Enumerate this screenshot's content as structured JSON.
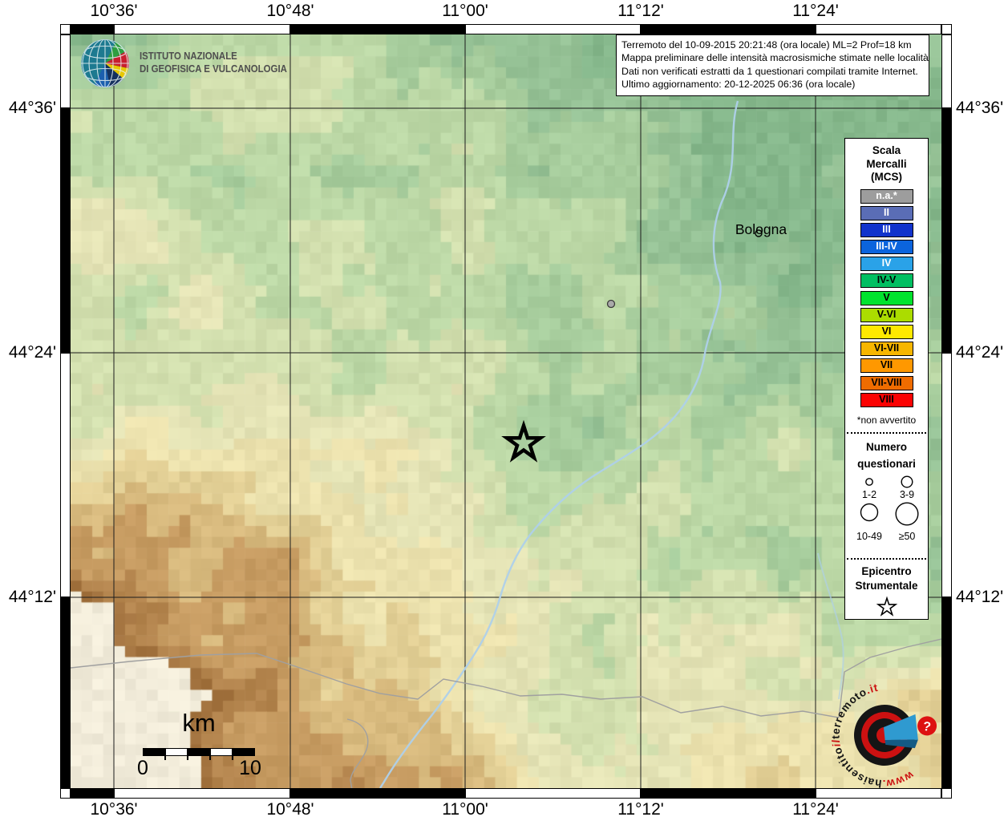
{
  "axes": {
    "lon_labels": [
      "10°36'",
      "10°48'",
      "11°00'",
      "11°12'",
      "11°24'"
    ],
    "lat_labels": [
      "44°36'",
      "44°24'",
      "44°12'"
    ]
  },
  "ingv": {
    "line1": "ISTITUTO NAZIONALE",
    "line2": "DI GEOFISICA E VULCANOLOGIA"
  },
  "info_box": {
    "lines": [
      "Terremoto del 10-09-2015 20:21:48 (ora locale) ML=2 Prof=18 km",
      "Mappa preliminare delle intensità macrosismiche stimate nelle località",
      "Dati non verificati estratti da 1 questionari compilati tramite Internet.",
      "Ultimo aggiornamento: 20-12-2025 06:36 (ora locale)"
    ]
  },
  "legend": {
    "title_lines": [
      "Scala",
      "Mercalli",
      "(MCS)"
    ],
    "mcs_items": [
      {
        "label": "n.a.*",
        "color": "#9d9d9d",
        "text": "#ffffff"
      },
      {
        "label": "II",
        "color": "#5a6db6",
        "text": "#ffffff"
      },
      {
        "label": "III",
        "color": "#1133cc",
        "text": "#ffffff"
      },
      {
        "label": "III-IV",
        "color": "#0b64dd",
        "text": "#ffffff"
      },
      {
        "label": "IV",
        "color": "#2aa2e8",
        "text": "#ffffff"
      },
      {
        "label": "IV-V",
        "color": "#00bf62",
        "text": "#000000"
      },
      {
        "label": "V",
        "color": "#00e32e",
        "text": "#000000"
      },
      {
        "label": "V-VI",
        "color": "#abdc00",
        "text": "#000000"
      },
      {
        "label": "VI",
        "color": "#ffe900",
        "text": "#000000"
      },
      {
        "label": "VI-VII",
        "color": "#f7b600",
        "text": "#000000"
      },
      {
        "label": "VII",
        "color": "#ff9800",
        "text": "#000000"
      },
      {
        "label": "VII-VIII",
        "color": "#ef6c00",
        "text": "#000000"
      },
      {
        "label": "VIII",
        "color": "#fb0303",
        "text": "#000000"
      }
    ],
    "footnote": "*non avvertito",
    "questionnaires": {
      "title_lines": [
        "Numero",
        "questionari"
      ],
      "labels": [
        "1-2",
        "3-9",
        "10-49",
        "≥50"
      ]
    },
    "epicenter": {
      "title_lines": [
        "Epicentro",
        "Strumentale"
      ]
    }
  },
  "map": {
    "city_label": "Bologna",
    "scale_unit": "km",
    "scale_start": "0",
    "scale_end": "10"
  },
  "logo": {
    "url_segments": [
      {
        "text": "www.",
        "color": "#cc1111"
      },
      {
        "text": "haisentito",
        "color": "#151515"
      },
      {
        "text": "il",
        "color": "#cc1111"
      },
      {
        "text": "terremoto",
        "color": "#151515"
      },
      {
        "text": ".it",
        "color": "#cc1111"
      }
    ],
    "question_mark": "?"
  }
}
